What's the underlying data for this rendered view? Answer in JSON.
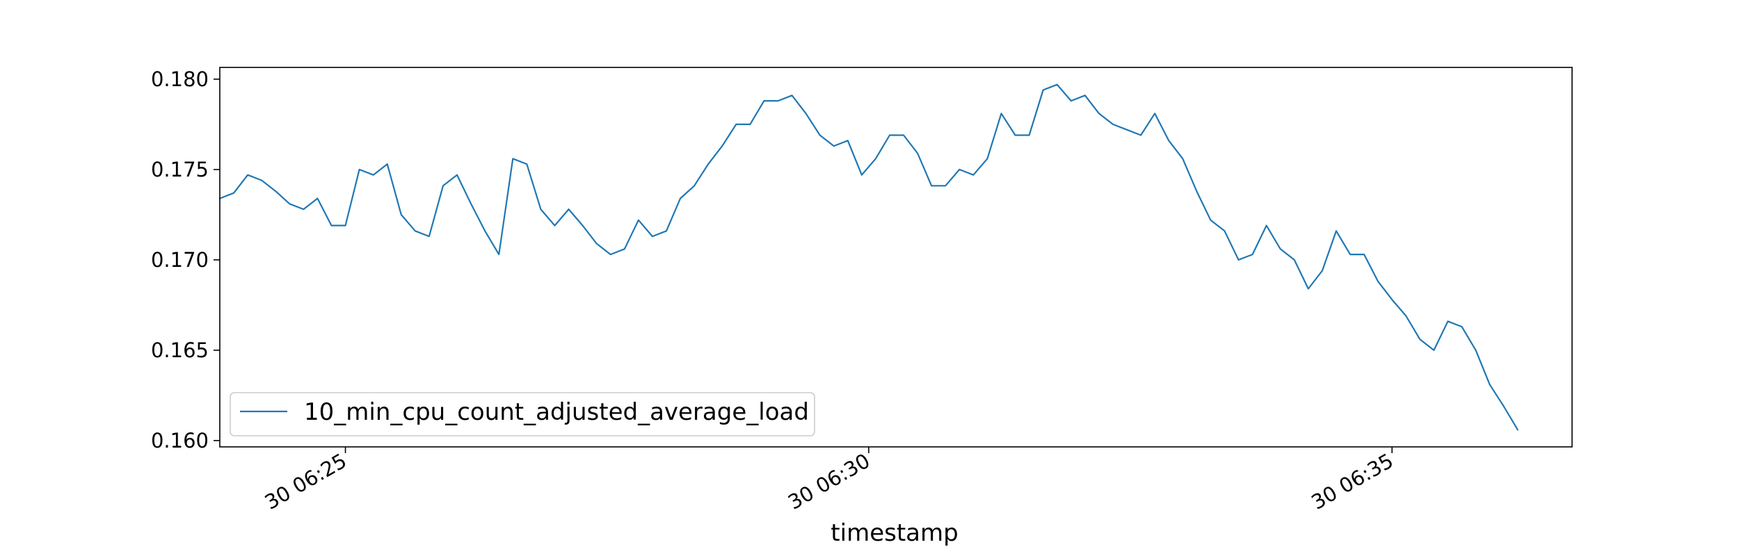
{
  "chart_data": {
    "type": "line",
    "title": "",
    "xlabel": "timestamp",
    "ylabel": "",
    "x_ticks": [
      {
        "value": 9.0,
        "label": "30 06:25"
      },
      {
        "value": 46.5,
        "label": "30 06:30"
      },
      {
        "value": 84.0,
        "label": "30 06:35"
      }
    ],
    "y_ticks": [
      {
        "value": 0.16,
        "label": "0.160"
      },
      {
        "value": 0.165,
        "label": "0.165"
      },
      {
        "value": 0.17,
        "label": "0.170"
      },
      {
        "value": 0.175,
        "label": "0.175"
      },
      {
        "value": 0.18,
        "label": "0.180"
      }
    ],
    "xlim": [
      0,
      96.9
    ],
    "ylim": [
      0.15965,
      0.18065
    ],
    "grid": false,
    "legend": {
      "placement": "lower-left"
    },
    "series": [
      {
        "name": "10_min_cpu_count_adjusted_average_load",
        "color": "#1f77b4",
        "values": [
          0.1734,
          0.1737,
          0.1747,
          0.1744,
          0.1738,
          0.1731,
          0.1728,
          0.1734,
          0.1719,
          0.1719,
          0.175,
          0.1747,
          0.1753,
          0.1725,
          0.1716,
          0.1713,
          0.1741,
          0.1747,
          0.1731,
          0.1716,
          0.1703,
          0.1756,
          0.1753,
          0.1728,
          0.1719,
          0.1728,
          0.1719,
          0.1709,
          0.1703,
          0.1706,
          0.1722,
          0.1713,
          0.1716,
          0.1734,
          0.1741,
          0.1753,
          0.1763,
          0.1775,
          0.1775,
          0.1788,
          0.1788,
          0.1791,
          0.1781,
          0.1769,
          0.1763,
          0.1766,
          0.1747,
          0.1756,
          0.1769,
          0.1769,
          0.1759,
          0.1741,
          0.1741,
          0.175,
          0.1747,
          0.1756,
          0.1781,
          0.1769,
          0.1769,
          0.1794,
          0.1797,
          0.1788,
          0.1791,
          0.1781,
          0.1775,
          0.1772,
          0.1769,
          0.1781,
          0.1766,
          0.1756,
          0.1738,
          0.1722,
          0.1716,
          0.17,
          0.1703,
          0.1719,
          0.1706,
          0.17,
          0.1684,
          0.1694,
          0.1716,
          0.1703,
          0.1703,
          0.1688,
          0.1678,
          0.1669,
          0.1656,
          0.165,
          0.1666,
          0.1663,
          0.165,
          0.1631,
          0.1619,
          0.1606
        ]
      }
    ]
  }
}
